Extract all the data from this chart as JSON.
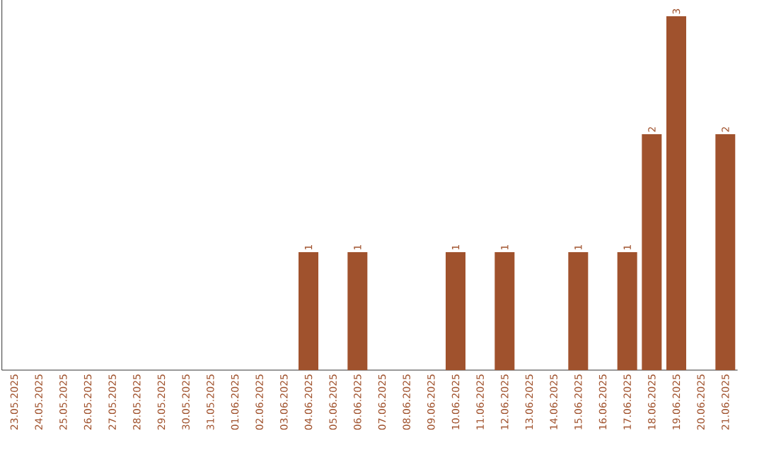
{
  "chart_data": {
    "type": "bar",
    "categories": [
      "23.05.2025",
      "24.05.2025",
      "25.05.2025",
      "26.05.2025",
      "27.05.2025",
      "28.05.2025",
      "29.05.2025",
      "30.05.2025",
      "31.05.2025",
      "01.06.2025",
      "02.06.2025",
      "03.06.2025",
      "04.06.2025",
      "05.06.2025",
      "06.06.2025",
      "07.06.2025",
      "08.06.2025",
      "09.06.2025",
      "10.06.2025",
      "11.06.2025",
      "12.06.2025",
      "13.06.2025",
      "14.06.2025",
      "15.06.2025",
      "16.06.2025",
      "17.06.2025",
      "18.06.2025",
      "19.06.2025",
      "20.06.2025",
      "21.06.2025"
    ],
    "values": [
      null,
      null,
      null,
      null,
      null,
      null,
      null,
      null,
      null,
      null,
      null,
      null,
      1,
      null,
      1,
      null,
      null,
      null,
      1,
      null,
      1,
      null,
      null,
      1,
      null,
      1,
      2,
      3,
      null,
      2
    ],
    "value_labels": [
      null,
      null,
      null,
      null,
      null,
      null,
      null,
      null,
      null,
      null,
      null,
      null,
      "1",
      null,
      "1",
      null,
      null,
      null,
      "1",
      null,
      "1",
      null,
      null,
      "1",
      null,
      "1",
      "2",
      "3",
      null,
      "2"
    ],
    "color": "#a0522d",
    "tick_labels": "x",
    "grid": false
  }
}
